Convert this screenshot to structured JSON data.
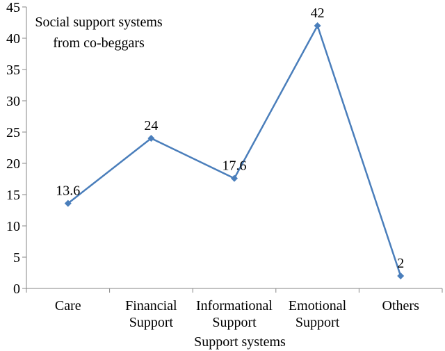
{
  "chart_data": {
    "type": "line",
    "title_lines": [
      "Social support systems",
      "from co-beggars"
    ],
    "xlabel": "Support systems",
    "ylabel": "",
    "ylim": [
      0,
      45
    ],
    "ytick_step": 5,
    "grid": false,
    "legend": "none",
    "categories": [
      [
        "Care"
      ],
      [
        "Financial",
        "Support"
      ],
      [
        "Informational",
        "Support"
      ],
      [
        "Emotional",
        "Support"
      ],
      [
        "Others"
      ]
    ],
    "series": [
      {
        "values": [
          13.6,
          24,
          17.6,
          42,
          2
        ],
        "labels": [
          "13.6",
          "24",
          "17.6",
          "42",
          "2"
        ]
      }
    ],
    "colors": {
      "line": "#4a7ebb",
      "axis": "#868686"
    }
  }
}
